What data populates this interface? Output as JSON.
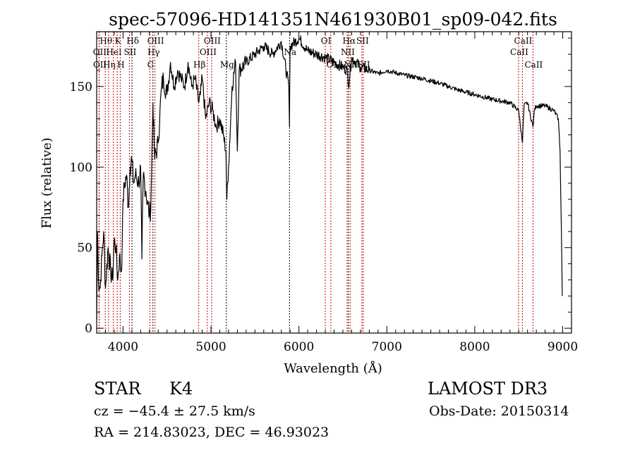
{
  "chart_data": {
    "type": "line",
    "title": "spec-57096-HD141351N461930B01_sp09-042.fits",
    "xlabel": "Wavelength (Å)",
    "ylabel": "Flux (relative)",
    "xlim": [
      3700,
      9100
    ],
    "ylim": [
      -3,
      184
    ],
    "xticks": [
      4000,
      5000,
      6000,
      7000,
      8000,
      9000
    ],
    "xtick_labels": [
      "4000",
      "5000",
      "6000",
      "7000",
      "8000",
      "9000"
    ],
    "yticks": [
      0,
      50,
      100,
      150
    ],
    "ytick_labels": [
      "0",
      "50",
      "100",
      "150"
    ],
    "grid": false,
    "series": [
      {
        "name": "spectrum",
        "color": "#000000",
        "x": [
          3700,
          3710,
          3720,
          3740,
          3760,
          3780,
          3800,
          3830,
          3860,
          3880,
          3900,
          3920,
          3940,
          3960,
          3980,
          3990,
          4000,
          4020,
          4040,
          4060,
          4080,
          4100,
          4120,
          4140,
          4180,
          4200,
          4214,
          4230,
          4260,
          4300,
          4316,
          4340,
          4360,
          4400,
          4420,
          4440,
          4460,
          4500,
          4540,
          4580,
          4620,
          4660,
          4700,
          4740,
          4780,
          4820,
          4860,
          4880,
          4900,
          4940,
          4980,
          5020,
          5060,
          5100,
          5140,
          5170,
          5180,
          5200,
          5240,
          5280,
          5300,
          5320,
          5400,
          5500,
          5600,
          5700,
          5800,
          5885,
          5893,
          5900,
          6000,
          6100,
          6200,
          6300,
          6400,
          6500,
          6555,
          6563,
          6600,
          6700,
          6800,
          6900,
          7000,
          7200,
          7400,
          7600,
          7800,
          8000,
          8200,
          8400,
          8500,
          8542,
          8560,
          8600,
          8662,
          8680,
          8700,
          8800,
          8900,
          8950,
          8970,
          8985,
          8995
        ],
        "y": [
          5,
          60,
          30,
          25,
          45,
          60,
          25,
          50,
          35,
          30,
          55,
          50,
          30,
          45,
          35,
          50,
          80,
          90,
          95,
          75,
          100,
          105,
          90,
          95,
          90,
          100,
          43,
          95,
          85,
          70,
          75,
          140,
          105,
          115,
          135,
          150,
          155,
          145,
          165,
          150,
          160,
          155,
          150,
          165,
          150,
          155,
          140,
          145,
          155,
          130,
          140,
          135,
          125,
          130,
          120,
          110,
          80,
          100,
          150,
          165,
          110,
          160,
          165,
          170,
          175,
          170,
          178,
          150,
          125,
          175,
          180,
          172,
          170,
          168,
          165,
          162,
          160,
          150,
          168,
          162,
          160,
          158,
          160,
          157,
          155,
          152,
          148,
          145,
          142,
          140,
          135,
          115,
          138,
          140,
          125,
          136,
          138,
          138,
          135,
          130,
          110,
          60,
          20
        ]
      }
    ],
    "line_markers": [
      {
        "label": "OII",
        "wavelength": 3727,
        "row": 2,
        "color": "#cc0000"
      },
      {
        "label": "OII",
        "wavelength": 3729,
        "row": 3,
        "color": "#cc0000"
      },
      {
        "label": "Hθ",
        "wavelength": 3798,
        "row": 1,
        "color": "#cc0000"
      },
      {
        "label": "Hη",
        "wavelength": 3835,
        "row": 3,
        "color": "#cc0000"
      },
      {
        "label": "HeI",
        "wavelength": 3889,
        "row": 2,
        "color": "#cc0000"
      },
      {
        "label": "K",
        "wavelength": 3934,
        "row": 1,
        "color": "#cc0000"
      },
      {
        "label": "H",
        "wavelength": 3968,
        "row": 3,
        "color": "#cc0000"
      },
      {
        "label": "SII",
        "wavelength": 4072,
        "row": 2,
        "color": "#cc0000"
      },
      {
        "label": "Hδ",
        "wavelength": 4102,
        "row": 1,
        "color": "#000000"
      },
      {
        "label": "G",
        "wavelength": 4305,
        "row": 3,
        "color": "#cc0000"
      },
      {
        "label": "Hγ",
        "wavelength": 4340,
        "row": 2,
        "color": "#000000"
      },
      {
        "label": "OIII",
        "wavelength": 4363,
        "row": 1,
        "color": "#cc0000"
      },
      {
        "label": "Hβ",
        "wavelength": 4861,
        "row": 3,
        "color": "#cc0000"
      },
      {
        "label": "OIII",
        "wavelength": 4959,
        "row": 2,
        "color": "#cc0000"
      },
      {
        "label": "OIII",
        "wavelength": 5007,
        "row": 1,
        "color": "#cc0000"
      },
      {
        "label": "Mg",
        "wavelength": 5175,
        "row": 3,
        "color": "#000000"
      },
      {
        "label": "Na",
        "wavelength": 5893,
        "row": 2,
        "color": "#000000"
      },
      {
        "label": "OI",
        "wavelength": 6300,
        "row": 1,
        "color": "#cc0000"
      },
      {
        "label": "OI",
        "wavelength": 6363,
        "row": 3,
        "color": "#cc0000"
      },
      {
        "label": "NII",
        "wavelength": 6548,
        "row": 2,
        "color": "#cc0000"
      },
      {
        "label": "Hα",
        "wavelength": 6563,
        "row": 1,
        "color": "#000000"
      },
      {
        "label": "NII",
        "wavelength": 6583,
        "row": 3,
        "color": "#cc0000"
      },
      {
        "label": "SII",
        "wavelength": 6716,
        "row": 1,
        "color": "#cc0000"
      },
      {
        "label": "SII",
        "wavelength": 6731,
        "row": 3,
        "color": "#cc0000"
      },
      {
        "label": "CaII",
        "wavelength": 8498,
        "row": 2,
        "color": "#cc0000"
      },
      {
        "label": "CaII",
        "wavelength": 8542,
        "row": 1,
        "color": "#cc0000"
      },
      {
        "label": "CaII",
        "wavelength": 8662,
        "row": 3,
        "color": "#cc0000"
      }
    ]
  },
  "info": {
    "object_class": "STAR",
    "subclass": "K4",
    "survey": "LAMOST DR3",
    "redshift": "cz = −45.4 ± 27.5 km/s",
    "obs_date": "Obs-Date: 20150314",
    "coords": "RA = 214.83023, DEC =  46.93023"
  }
}
